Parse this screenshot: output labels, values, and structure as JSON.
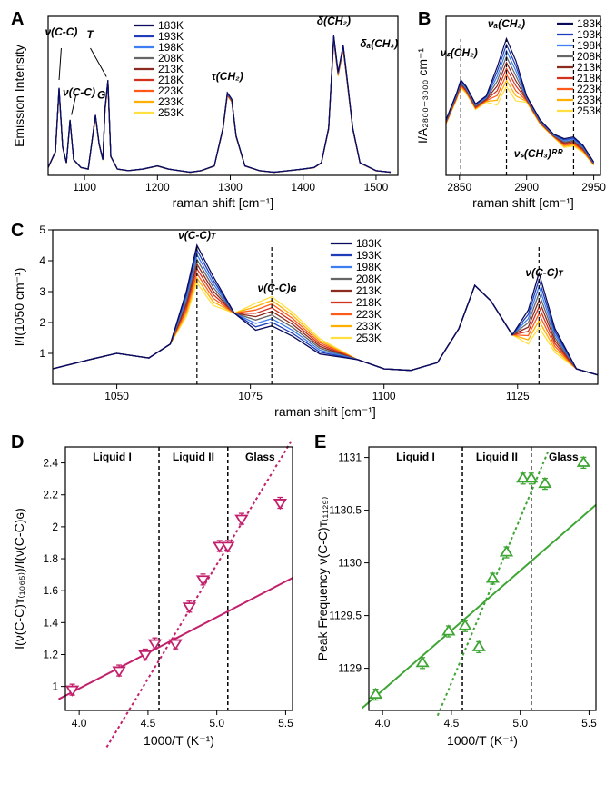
{
  "panels": {
    "A": "A",
    "B": "B",
    "C": "C",
    "D": "D",
    "E": "E"
  },
  "temps": [
    {
      "t": "183K",
      "c": "#0a0a5a"
    },
    {
      "t": "193K",
      "c": "#1f3db8"
    },
    {
      "t": "198K",
      "c": "#3d7ff0"
    },
    {
      "t": "208K",
      "c": "#666666"
    },
    {
      "t": "213K",
      "c": "#8b2a1f"
    },
    {
      "t": "218K",
      "c": "#d0321e"
    },
    {
      "t": "223K",
      "c": "#ff5a1a"
    },
    {
      "t": "233K",
      "c": "#ffb000"
    },
    {
      "t": "253K",
      "c": "#ffe040"
    }
  ],
  "A": {
    "xlabel": "raman shift [cm⁻¹]",
    "ylabel": "Emission Intensity",
    "xlim": [
      1050,
      1530
    ],
    "xticks": [
      1100,
      1200,
      1300,
      1400,
      1500
    ],
    "peaks": {
      "vCCT": "ν(C-C)ᴛ",
      "vCCG": "ν(C-C)ɢ",
      "tauCH2": "τ(CH₂)",
      "deltaCH2": "δ(CH₂)",
      "deltaCH3": "δₐ(CH₃)"
    },
    "base_spectrum": [
      [
        1050,
        0.05
      ],
      [
        1060,
        0.15
      ],
      [
        1065,
        0.55
      ],
      [
        1070,
        0.18
      ],
      [
        1075,
        0.08
      ],
      [
        1080,
        0.35
      ],
      [
        1085,
        0.1
      ],
      [
        1095,
        0.05
      ],
      [
        1105,
        0.04
      ],
      [
        1115,
        0.38
      ],
      [
        1120,
        0.2
      ],
      [
        1125,
        0.1
      ],
      [
        1128,
        0.42
      ],
      [
        1132,
        0.6
      ],
      [
        1136,
        0.12
      ],
      [
        1145,
        0.04
      ],
      [
        1160,
        0.03
      ],
      [
        1180,
        0.04
      ],
      [
        1200,
        0.06
      ],
      [
        1215,
        0.04
      ],
      [
        1230,
        0.03
      ],
      [
        1245,
        0.02
      ],
      [
        1260,
        0.03
      ],
      [
        1278,
        0.06
      ],
      [
        1290,
        0.3
      ],
      [
        1296,
        0.52
      ],
      [
        1302,
        0.48
      ],
      [
        1308,
        0.25
      ],
      [
        1320,
        0.06
      ],
      [
        1340,
        0.03
      ],
      [
        1360,
        0.02
      ],
      [
        1380,
        0.03
      ],
      [
        1400,
        0.04
      ],
      [
        1415,
        0.05
      ],
      [
        1425,
        0.08
      ],
      [
        1435,
        0.3
      ],
      [
        1442,
        0.88
      ],
      [
        1448,
        0.65
      ],
      [
        1455,
        0.82
      ],
      [
        1460,
        0.62
      ],
      [
        1468,
        0.3
      ],
      [
        1478,
        0.08
      ],
      [
        1500,
        0.03
      ],
      [
        1520,
        0.02
      ]
    ]
  },
  "B": {
    "xlabel": "raman shift [cm⁻¹]",
    "ylabel": "I/A₂₈₀₀₋₃₀₀₀ cm⁻¹",
    "xlim": [
      2840,
      2955
    ],
    "xticks": [
      2850,
      2900,
      2950
    ],
    "peaks": {
      "vsCH2": "νₛ(CH₂)",
      "vaCH2": "νₐ(CH₂)",
      "vsCH3FR": "νₛ(CH₃)ᴿᴿ"
    },
    "dash_x": [
      2851,
      2885,
      2935
    ],
    "base_spectrum": [
      [
        2840,
        0.35
      ],
      [
        2848,
        0.52
      ],
      [
        2851,
        0.6
      ],
      [
        2855,
        0.56
      ],
      [
        2862,
        0.45
      ],
      [
        2870,
        0.5
      ],
      [
        2878,
        0.68
      ],
      [
        2885,
        0.86
      ],
      [
        2892,
        0.72
      ],
      [
        2900,
        0.5
      ],
      [
        2910,
        0.35
      ],
      [
        2920,
        0.26
      ],
      [
        2928,
        0.22
      ],
      [
        2935,
        0.23
      ],
      [
        2942,
        0.18
      ],
      [
        2950,
        0.08
      ]
    ]
  },
  "C": {
    "xlabel": "raman shift [cm⁻¹]",
    "ylabel": "I/I(1050 cm⁻¹)",
    "xlim": [
      1038,
      1140
    ],
    "xticks": [
      1050,
      1075,
      1100,
      1125
    ],
    "ylim": [
      0,
      5
    ],
    "yticks": [
      1,
      2,
      3,
      4,
      5
    ],
    "peaks": {
      "vCCT": "ν(C-C)ᴛ",
      "vCCG": "ν(C-C)ɢ",
      "vCCT2": "ν(C-C)ᴛ"
    },
    "dash_x": [
      1065,
      1079,
      1129
    ],
    "base_spectrum": [
      [
        1038,
        0.5
      ],
      [
        1045,
        0.8
      ],
      [
        1050,
        1.0
      ],
      [
        1056,
        0.85
      ],
      [
        1060,
        1.3
      ],
      [
        1063,
        3.0
      ],
      [
        1065,
        4.5
      ],
      [
        1068,
        3.5
      ],
      [
        1072,
        2.3
      ],
      [
        1076,
        2.5
      ],
      [
        1079,
        2.7
      ],
      [
        1083,
        2.2
      ],
      [
        1088,
        1.4
      ],
      [
        1095,
        0.8
      ],
      [
        1100,
        0.5
      ],
      [
        1105,
        0.45
      ],
      [
        1110,
        0.7
      ],
      [
        1114,
        1.8
      ],
      [
        1117,
        3.2
      ],
      [
        1120,
        2.7
      ],
      [
        1124,
        1.6
      ],
      [
        1127,
        2.0
      ],
      [
        1129,
        3.2
      ],
      [
        1132,
        1.4
      ],
      [
        1136,
        0.5
      ],
      [
        1140,
        0.3
      ]
    ]
  },
  "D": {
    "xlabel": "1000/T (K⁻¹)",
    "ylabel": "I(ν(C-C)ᴛ₍₁₀₆₅₎)/I(ν(C-C)ɢ)",
    "color": "#c3206b",
    "xlim": [
      3.9,
      5.55
    ],
    "xticks": [
      4.0,
      4.5,
      5.0,
      5.5
    ],
    "ylim": [
      0.85,
      2.5
    ],
    "yticks": [
      1.0,
      1.2,
      1.4,
      1.6,
      1.8,
      2.0,
      2.2,
      2.4
    ],
    "points": [
      [
        3.95,
        0.98
      ],
      [
        4.29,
        1.1
      ],
      [
        4.48,
        1.2
      ],
      [
        4.55,
        1.27
      ],
      [
        4.7,
        1.27
      ],
      [
        4.8,
        1.5
      ],
      [
        4.9,
        1.67
      ],
      [
        5.02,
        1.88
      ],
      [
        5.08,
        1.88
      ],
      [
        5.18,
        2.05
      ],
      [
        5.46,
        2.15
      ]
    ],
    "solid": [
      [
        3.85,
        0.92
      ],
      [
        5.55,
        1.68
      ]
    ],
    "dotted": [
      [
        4.2,
        0.62
      ],
      [
        5.55,
        2.55
      ]
    ],
    "vlines_x": [
      4.58,
      5.08
    ],
    "regions": {
      "l1": "Liquid I",
      "l2": "Liquid II",
      "g": "Glass"
    }
  },
  "E": {
    "xlabel": "1000/T (K⁻¹)",
    "ylabel": "Peak Frequency ν(C-C)ᴛ₍₁₁₂₉₎",
    "color": "#3fa535",
    "xlim": [
      3.9,
      5.55
    ],
    "xticks": [
      4.0,
      4.5,
      5.0,
      5.5
    ],
    "ylim": [
      1128.6,
      1131.1
    ],
    "yticks": [
      1129.0,
      1129.5,
      1130.0,
      1130.5,
      1131.0
    ],
    "points": [
      [
        3.95,
        1128.75
      ],
      [
        4.29,
        1129.05
      ],
      [
        4.48,
        1129.35
      ],
      [
        4.6,
        1129.4
      ],
      [
        4.7,
        1129.2
      ],
      [
        4.8,
        1129.85
      ],
      [
        4.9,
        1130.1
      ],
      [
        5.02,
        1130.8
      ],
      [
        5.08,
        1130.8
      ],
      [
        5.18,
        1130.75
      ],
      [
        5.46,
        1130.95
      ]
    ],
    "solid": [
      [
        3.85,
        1128.62
      ],
      [
        5.55,
        1130.55
      ]
    ],
    "dotted": [
      [
        4.4,
        1128.55
      ],
      [
        5.2,
        1131.05
      ]
    ],
    "vlines_x": [
      4.58,
      5.08
    ],
    "regions": {
      "l1": "Liquid I",
      "l2": "Liquid II",
      "g": "Glass"
    }
  }
}
